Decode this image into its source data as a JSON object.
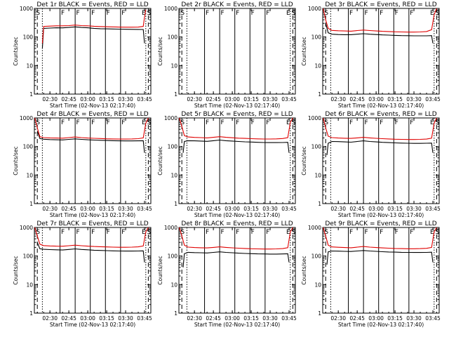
{
  "chart_data": {
    "type": "line",
    "x_start_label": "Start Time (02-Nov-13 02:17:40)",
    "xlim": [
      "02:17:40",
      "03:50:00"
    ],
    "x_ticks": [
      "02:30",
      "02:45",
      "03:00",
      "03:15",
      "03:30",
      "03:45"
    ],
    "ylabel": "Counts/sec",
    "y_scale": "log",
    "ylim": [
      1,
      1000
    ],
    "y_ticks": [
      "1",
      "10",
      "100",
      "1000"
    ],
    "series_colors": {
      "events": "#000000",
      "lld": "#e00000"
    },
    "markers": {
      "S": [
        "02:20",
        "03:48"
      ],
      "F": [
        "02:38",
        "02:50",
        "03:02",
        "03:14",
        "03:26"
      ],
      "E": [
        "03:46"
      ]
    },
    "panels": [
      {
        "title": "Det 1r BLACK = Events, RED = LLD",
        "has_data": true,
        "series": [
          {
            "role": "events",
            "x": [
              "02:24",
              "02:25",
              "02:30",
              "02:35",
              "02:40",
              "02:45",
              "02:50",
              "02:55",
              "03:00",
              "03:05",
              "03:10",
              "03:15",
              "03:20",
              "03:25",
              "03:30",
              "03:35",
              "03:40",
              "03:44",
              "03:45"
            ],
            "values": [
              40,
              200,
              205,
              210,
              208,
              215,
              225,
              215,
              210,
              200,
              195,
              192,
              190,
              188,
              186,
              185,
              184,
              183,
              60
            ]
          },
          {
            "role": "lld",
            "x": [
              "02:24",
              "02:25",
              "02:30",
              "02:35",
              "02:40",
              "02:45",
              "02:50",
              "02:55",
              "03:00",
              "03:05",
              "03:10",
              "03:15",
              "03:20",
              "03:25",
              "03:30",
              "03:35",
              "03:40",
              "03:44",
              "03:45",
              "03:46"
            ],
            "values": [
              60,
              235,
              240,
              245,
              245,
              250,
              262,
              250,
              245,
              238,
              232,
              228,
              225,
              222,
              220,
              220,
              222,
              235,
              500,
              900
            ]
          }
        ]
      },
      {
        "title": "Det 2r BLACK = Events, RED = LLD",
        "has_data": false,
        "series": []
      },
      {
        "title": "Det 3r BLACK = Events, RED = LLD",
        "has_data": true,
        "series": [
          {
            "role": "events",
            "x": [
              "02:20",
              "02:22",
              "02:25",
              "02:30",
              "02:35",
              "02:40",
              "02:45",
              "02:50",
              "02:55",
              "03:00",
              "03:05",
              "03:10",
              "03:15",
              "03:20",
              "03:25",
              "03:30",
              "03:35",
              "03:40",
              "03:44",
              "03:45"
            ],
            "values": [
              300,
              140,
              125,
              122,
              120,
              120,
              125,
              130,
              125,
              122,
              118,
              116,
              114,
              112,
              111,
              110,
              110,
              110,
              112,
              60
            ]
          },
          {
            "role": "lld",
            "x": [
              "02:18",
              "02:20",
              "02:22",
              "02:25",
              "02:30",
              "02:35",
              "02:40",
              "02:45",
              "02:50",
              "02:55",
              "03:00",
              "03:05",
              "03:10",
              "03:15",
              "03:20",
              "03:25",
              "03:30",
              "03:35",
              "03:40",
              "03:44",
              "03:46",
              "03:48"
            ],
            "values": [
              1000,
              400,
              200,
              170,
              165,
              162,
              160,
              168,
              175,
              168,
              162,
              158,
              155,
              152,
              150,
              148,
              148,
              150,
              155,
              180,
              600,
              1000
            ]
          }
        ]
      },
      {
        "title": "Det 4r BLACK = Events, RED = LLD",
        "has_data": true,
        "series": [
          {
            "role": "events",
            "x": [
              "02:20",
              "02:22",
              "02:25",
              "02:30",
              "02:35",
              "02:40",
              "02:45",
              "02:50",
              "02:55",
              "03:00",
              "03:05",
              "03:10",
              "03:15",
              "03:20",
              "03:25",
              "03:30",
              "03:35",
              "03:40",
              "03:44",
              "03:45"
            ],
            "values": [
              350,
              190,
              180,
              175,
              172,
              170,
              178,
              185,
              178,
              172,
              168,
              165,
              162,
              160,
              158,
              157,
              157,
              158,
              160,
              60
            ]
          },
          {
            "role": "lld",
            "x": [
              "02:18",
              "02:20",
              "02:22",
              "02:25",
              "02:30",
              "02:35",
              "02:40",
              "02:45",
              "02:50",
              "02:55",
              "03:00",
              "03:05",
              "03:10",
              "03:15",
              "03:20",
              "03:25",
              "03:30",
              "03:35",
              "03:40",
              "03:44",
              "03:46",
              "03:48"
            ],
            "values": [
              1000,
              450,
              220,
              205,
              200,
              198,
              196,
              205,
              215,
              205,
              198,
              194,
              190,
              186,
              184,
              182,
              182,
              184,
              188,
              200,
              650,
              1000
            ]
          }
        ]
      },
      {
        "title": "Det 5r BLACK = Events, RED = LLD",
        "has_data": true,
        "series": [
          {
            "role": "events",
            "x": [
              "02:21",
              "02:22",
              "02:25",
              "02:30",
              "02:35",
              "02:40",
              "02:45",
              "02:50",
              "02:55",
              "03:00",
              "03:05",
              "03:10",
              "03:15",
              "03:20",
              "03:25",
              "03:30",
              "03:35",
              "03:40",
              "03:44",
              "03:45"
            ],
            "values": [
              60,
              150,
              160,
              158,
              155,
              152,
              160,
              168,
              160,
              155,
              150,
              146,
              143,
              140,
              138,
              137,
              137,
              138,
              140,
              60
            ]
          },
          {
            "role": "lld",
            "x": [
              "02:18",
              "02:20",
              "02:22",
              "02:25",
              "02:30",
              "02:35",
              "02:40",
              "02:45",
              "02:50",
              "02:55",
              "03:00",
              "03:05",
              "03:10",
              "03:15",
              "03:20",
              "03:25",
              "03:30",
              "03:35",
              "03:40",
              "03:44",
              "03:46",
              "03:48"
            ],
            "values": [
              1000,
              500,
              240,
              215,
              208,
              205,
              200,
              210,
              220,
              210,
              202,
              196,
              192,
              188,
              185,
              183,
              183,
              185,
              190,
              205,
              700,
              1000
            ]
          }
        ]
      },
      {
        "title": "Det 6r BLACK = Events, RED = LLD",
        "has_data": true,
        "series": [
          {
            "role": "events",
            "x": [
              "02:21",
              "02:22",
              "02:25",
              "02:30",
              "02:35",
              "02:40",
              "02:45",
              "02:50",
              "02:55",
              "03:00",
              "03:05",
              "03:10",
              "03:15",
              "03:20",
              "03:25",
              "03:30",
              "03:35",
              "03:40",
              "03:44",
              "03:45"
            ],
            "values": [
              50,
              130,
              150,
              148,
              145,
              142,
              150,
              158,
              150,
              145,
              140,
              137,
              134,
              132,
              130,
              129,
              129,
              130,
              132,
              60
            ]
          },
          {
            "role": "lld",
            "x": [
              "02:18",
              "02:20",
              "02:22",
              "02:25",
              "02:30",
              "02:35",
              "02:40",
              "02:45",
              "02:50",
              "02:55",
              "03:00",
              "03:05",
              "03:10",
              "03:15",
              "03:20",
              "03:25",
              "03:30",
              "03:35",
              "03:40",
              "03:44",
              "03:46",
              "03:48"
            ],
            "values": [
              1000,
              450,
              230,
              205,
              198,
              195,
              192,
              200,
              210,
              200,
              194,
              188,
              184,
              180,
              178,
              176,
              176,
              178,
              182,
              196,
              650,
              1000
            ]
          }
        ]
      },
      {
        "title": "Det 7r BLACK = Events, RED = LLD",
        "has_data": true,
        "series": [
          {
            "role": "events",
            "x": [
              "02:20",
              "02:22",
              "02:25",
              "02:30",
              "02:35",
              "02:40",
              "02:45",
              "02:50",
              "02:55",
              "03:00",
              "03:05",
              "03:10",
              "03:15",
              "03:20",
              "03:25",
              "03:30",
              "03:35",
              "03:40",
              "03:44",
              "03:45"
            ],
            "values": [
              300,
              180,
              172,
              168,
              165,
              162,
              170,
              178,
              170,
              165,
              160,
              157,
              154,
              152,
              150,
              149,
              149,
              150,
              152,
              60
            ]
          },
          {
            "role": "lld",
            "x": [
              "02:18",
              "02:20",
              "02:22",
              "02:25",
              "02:30",
              "02:35",
              "02:40",
              "02:45",
              "02:50",
              "02:55",
              "03:00",
              "03:05",
              "03:10",
              "03:15",
              "03:20",
              "03:25",
              "03:30",
              "03:35",
              "03:40",
              "03:44",
              "03:46",
              "03:48"
            ],
            "values": [
              1000,
              500,
              260,
              232,
              225,
              222,
              220,
              230,
              240,
              230,
              222,
              216,
              212,
              208,
              205,
              203,
              203,
              205,
              210,
              225,
              700,
              1000
            ]
          }
        ]
      },
      {
        "title": "Det 8r BLACK = Events, RED = LLD",
        "has_data": true,
        "series": [
          {
            "role": "events",
            "x": [
              "02:21",
              "02:22",
              "02:25",
              "02:30",
              "02:35",
              "02:40",
              "02:45",
              "02:50",
              "02:55",
              "03:00",
              "03:05",
              "03:10",
              "03:15",
              "03:20",
              "03:25",
              "03:30",
              "03:35",
              "03:40",
              "03:44",
              "03:45"
            ],
            "values": [
              40,
              120,
              135,
              132,
              130,
              128,
              134,
              140,
              134,
              130,
              126,
              123,
              121,
              119,
              118,
              117,
              117,
              118,
              120,
              60
            ]
          },
          {
            "role": "lld",
            "x": [
              "02:18",
              "02:20",
              "02:22",
              "02:25",
              "02:30",
              "02:35",
              "02:40",
              "02:45",
              "02:50",
              "02:55",
              "03:00",
              "03:05",
              "03:10",
              "03:15",
              "03:20",
              "03:25",
              "03:30",
              "03:35",
              "03:40",
              "03:44",
              "03:46",
              "03:48"
            ],
            "values": [
              1000,
              500,
              240,
              205,
              198,
              195,
              192,
              200,
              210,
              200,
              194,
              188,
              184,
              180,
              178,
              176,
              176,
              178,
              182,
              196,
              700,
              1000
            ]
          }
        ]
      },
      {
        "title": "Det 9r BLACK = Events, RED = LLD",
        "has_data": true,
        "series": [
          {
            "role": "events",
            "x": [
              "02:21",
              "02:22",
              "02:25",
              "02:30",
              "02:35",
              "02:40",
              "02:45",
              "02:50",
              "02:55",
              "03:00",
              "03:05",
              "03:10",
              "03:15",
              "03:20",
              "03:25",
              "03:30",
              "03:35",
              "03:40",
              "03:44",
              "03:45"
            ],
            "values": [
              50,
              140,
              150,
              148,
              146,
              144,
              150,
              156,
              150,
              146,
              142,
              139,
              137,
              135,
              134,
              133,
              133,
              134,
              136,
              60
            ]
          },
          {
            "role": "lld",
            "x": [
              "02:18",
              "02:20",
              "02:22",
              "02:25",
              "02:30",
              "02:35",
              "02:40",
              "02:45",
              "02:50",
              "02:55",
              "03:00",
              "03:05",
              "03:10",
              "03:15",
              "03:20",
              "03:25",
              "03:30",
              "03:35",
              "03:40",
              "03:44",
              "03:46",
              "03:48"
            ],
            "values": [
              1000,
              500,
              240,
              208,
              202,
              198,
              195,
              205,
              215,
              205,
              198,
              192,
              188,
              184,
              182,
              180,
              180,
              182,
              186,
              200,
              700,
              1000
            ]
          }
        ]
      }
    ]
  }
}
